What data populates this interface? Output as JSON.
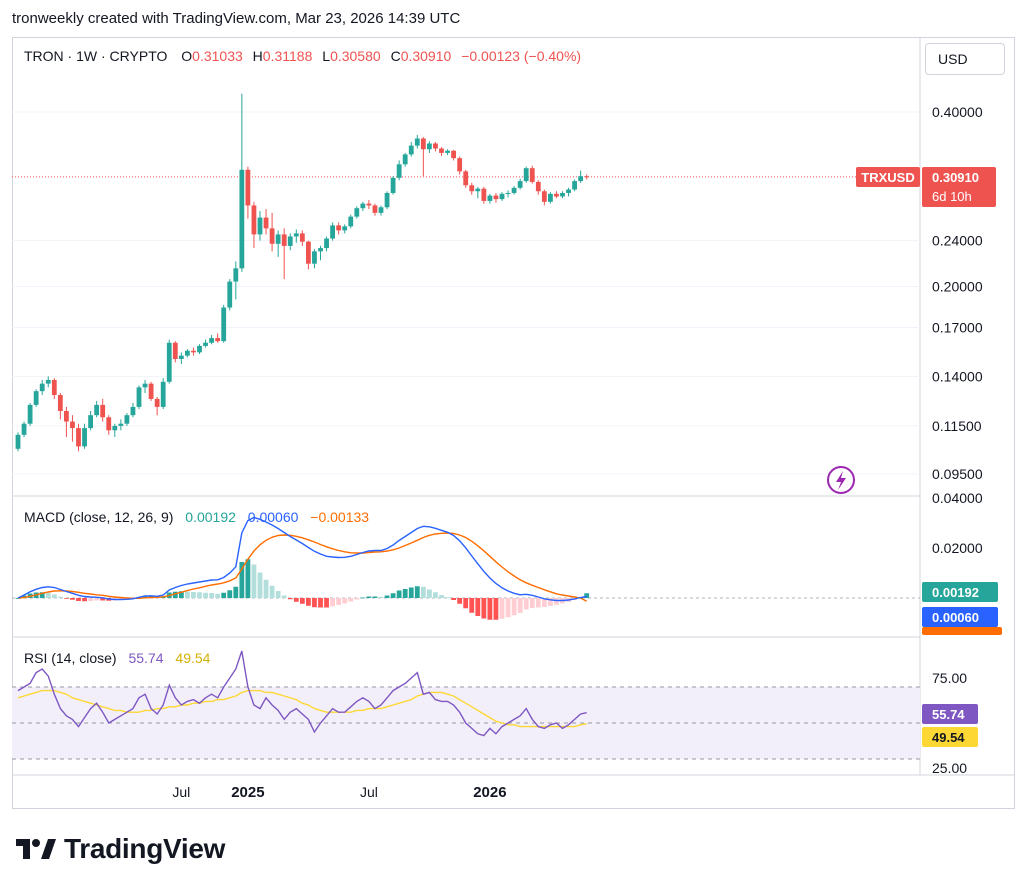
{
  "header": {
    "text": "tronweekly created with TradingView.com, Mar 23, 2026 14:39 UTC"
  },
  "currency_button": "USD",
  "brand": {
    "name": "TradingView",
    "logo": "tradingview-logo-icon"
  },
  "colors": {
    "up": "#26a69a",
    "down": "#ef5350",
    "macd_line": "#2962ff",
    "signal_line": "#ff6d00",
    "hist_up_strong": "#26a69a",
    "hist_up_weak": "#b2dfdb",
    "hist_down_strong": "#ff5252",
    "hist_down_weak": "#ffcdd2",
    "rsi_line": "#7e57c2",
    "rsi_ma": "#fdd835",
    "rsi_band": "#f3effa",
    "price_label_bg": "#ef5350"
  },
  "legend": {
    "symbol": "TRON · 1W · CRYPTO",
    "o_label": "O",
    "o_value": "0.31033",
    "h_label": "H",
    "h_value": "0.31188",
    "l_label": "L",
    "l_value": "0.30580",
    "c_label": "C",
    "c_value": "0.30910",
    "change": "−0.00123 (−0.40%)",
    "macd_title": "MACD (close, 12, 26, 9)",
    "macd_hist": "0.00192",
    "macd_value": "0.00060",
    "macd_signal": "−0.00133",
    "rsi_title": "RSI (14, close)",
    "rsi_value": "55.74",
    "rsi_ma": "49.54"
  },
  "price_labels": {
    "ticker": "TRXUSD",
    "last": "0.30910",
    "countdown": "6d 10h"
  },
  "macd_labels": {
    "hist": "0.00192",
    "macd": "0.00060",
    "signal": "−0.00133"
  },
  "rsi_labels": {
    "rsi": "55.74",
    "ma": "49.54"
  },
  "chart_data": [
    {
      "type": "candlestick",
      "title": "TRON · 1W · CRYPTO",
      "scale": "log",
      "y_ticks": [
        "0.40000",
        "0.24000",
        "0.20000",
        "0.17000",
        "0.14000",
        "0.11500",
        "0.09500"
      ],
      "x_ticks": [
        "Jul",
        "2025",
        "Jul",
        "2026"
      ],
      "last_price": 0.3091,
      "candles": [
        [
          0.105,
          0.112,
          0.104,
          0.111
        ],
        [
          0.111,
          0.117,
          0.11,
          0.116
        ],
        [
          0.116,
          0.126,
          0.115,
          0.125
        ],
        [
          0.125,
          0.133,
          0.124,
          0.132
        ],
        [
          0.132,
          0.138,
          0.13,
          0.136
        ],
        [
          0.136,
          0.14,
          0.134,
          0.138
        ],
        [
          0.138,
          0.139,
          0.128,
          0.13
        ],
        [
          0.13,
          0.131,
          0.118,
          0.122
        ],
        [
          0.122,
          0.124,
          0.11,
          0.117
        ],
        [
          0.117,
          0.12,
          0.108,
          0.114
        ],
        [
          0.114,
          0.116,
          0.104,
          0.106
        ],
        [
          0.106,
          0.116,
          0.105,
          0.114
        ],
        [
          0.114,
          0.122,
          0.113,
          0.12
        ],
        [
          0.12,
          0.127,
          0.119,
          0.125
        ],
        [
          0.125,
          0.128,
          0.117,
          0.119
        ],
        [
          0.119,
          0.12,
          0.111,
          0.113
        ],
        [
          0.113,
          0.116,
          0.11,
          0.115
        ],
        [
          0.115,
          0.118,
          0.113,
          0.116
        ],
        [
          0.116,
          0.121,
          0.115,
          0.12
        ],
        [
          0.12,
          0.126,
          0.119,
          0.124
        ],
        [
          0.124,
          0.135,
          0.123,
          0.134
        ],
        [
          0.134,
          0.138,
          0.131,
          0.136
        ],
        [
          0.136,
          0.137,
          0.127,
          0.128
        ],
        [
          0.128,
          0.129,
          0.12,
          0.124
        ],
        [
          0.124,
          0.139,
          0.123,
          0.137
        ],
        [
          0.137,
          0.162,
          0.136,
          0.16
        ],
        [
          0.16,
          0.161,
          0.148,
          0.15
        ],
        [
          0.15,
          0.154,
          0.147,
          0.152
        ],
        [
          0.152,
          0.156,
          0.151,
          0.155
        ],
        [
          0.155,
          0.157,
          0.152,
          0.154
        ],
        [
          0.154,
          0.159,
          0.153,
          0.158
        ],
        [
          0.158,
          0.162,
          0.157,
          0.16
        ],
        [
          0.16,
          0.165,
          0.159,
          0.163
        ],
        [
          0.163,
          0.166,
          0.16,
          0.161
        ],
        [
          0.161,
          0.186,
          0.16,
          0.184
        ],
        [
          0.184,
          0.206,
          0.182,
          0.204
        ],
        [
          0.204,
          0.221,
          0.19,
          0.215
        ],
        [
          0.215,
          0.43,
          0.212,
          0.318
        ],
        [
          0.318,
          0.322,
          0.262,
          0.276
        ],
        [
          0.276,
          0.28,
          0.233,
          0.246
        ],
        [
          0.246,
          0.27,
          0.24,
          0.263
        ],
        [
          0.263,
          0.272,
          0.246,
          0.252
        ],
        [
          0.252,
          0.268,
          0.23,
          0.237
        ],
        [
          0.237,
          0.25,
          0.225,
          0.246
        ],
        [
          0.246,
          0.252,
          0.206,
          0.235
        ],
        [
          0.235,
          0.247,
          0.231,
          0.244
        ],
        [
          0.244,
          0.251,
          0.238,
          0.247
        ],
        [
          0.247,
          0.25,
          0.235,
          0.239
        ],
        [
          0.239,
          0.24,
          0.214,
          0.219
        ],
        [
          0.219,
          0.232,
          0.215,
          0.23
        ],
        [
          0.23,
          0.235,
          0.222,
          0.233
        ],
        [
          0.233,
          0.244,
          0.23,
          0.242
        ],
        [
          0.242,
          0.258,
          0.24,
          0.255
        ],
        [
          0.255,
          0.258,
          0.246,
          0.25
        ],
        [
          0.25,
          0.256,
          0.247,
          0.254
        ],
        [
          0.254,
          0.266,
          0.252,
          0.264
        ],
        [
          0.264,
          0.275,
          0.262,
          0.273
        ],
        [
          0.273,
          0.28,
          0.27,
          0.278
        ],
        [
          0.278,
          0.282,
          0.272,
          0.276
        ],
        [
          0.276,
          0.278,
          0.265,
          0.268
        ],
        [
          0.268,
          0.276,
          0.265,
          0.274
        ],
        [
          0.274,
          0.292,
          0.272,
          0.29
        ],
        [
          0.29,
          0.31,
          0.288,
          0.308
        ],
        [
          0.308,
          0.33,
          0.305,
          0.325
        ],
        [
          0.325,
          0.34,
          0.322,
          0.338
        ],
        [
          0.338,
          0.355,
          0.335,
          0.35
        ],
        [
          0.35,
          0.365,
          0.346,
          0.36
        ],
        [
          0.36,
          0.362,
          0.31,
          0.345
        ],
        [
          0.345,
          0.356,
          0.34,
          0.353
        ],
        [
          0.353,
          0.355,
          0.342,
          0.346
        ],
        [
          0.346,
          0.348,
          0.336,
          0.34
        ],
        [
          0.34,
          0.345,
          0.337,
          0.343
        ],
        [
          0.343,
          0.344,
          0.33,
          0.333
        ],
        [
          0.333,
          0.335,
          0.312,
          0.316
        ],
        [
          0.316,
          0.318,
          0.296,
          0.299
        ],
        [
          0.299,
          0.302,
          0.288,
          0.292
        ],
        [
          0.292,
          0.297,
          0.284,
          0.295
        ],
        [
          0.295,
          0.297,
          0.278,
          0.281
        ],
        [
          0.281,
          0.289,
          0.278,
          0.287
        ],
        [
          0.287,
          0.29,
          0.279,
          0.283
        ],
        [
          0.283,
          0.291,
          0.281,
          0.289
        ],
        [
          0.289,
          0.293,
          0.285,
          0.29
        ],
        [
          0.29,
          0.298,
          0.288,
          0.296
        ],
        [
          0.296,
          0.307,
          0.294,
          0.304
        ],
        [
          0.304,
          0.322,
          0.302,
          0.32
        ],
        [
          0.32,
          0.323,
          0.301,
          0.303
        ],
        [
          0.303,
          0.305,
          0.288,
          0.292
        ],
        [
          0.292,
          0.294,
          0.276,
          0.28
        ],
        [
          0.28,
          0.291,
          0.278,
          0.289
        ],
        [
          0.289,
          0.292,
          0.284,
          0.286
        ],
        [
          0.286,
          0.292,
          0.284,
          0.29
        ],
        [
          0.29,
          0.296,
          0.286,
          0.294
        ],
        [
          0.294,
          0.306,
          0.292,
          0.304
        ],
        [
          0.304,
          0.317,
          0.302,
          0.31
        ],
        [
          0.31,
          0.312,
          0.306,
          0.309
        ]
      ]
    },
    {
      "type": "line",
      "title": "MACD (close, 12, 26, 9)",
      "y_ticks": [
        "0.04000",
        "0.02000"
      ],
      "macd": [
        0,
        0.0012,
        0.0025,
        0.0035,
        0.0042,
        0.0045,
        0.0042,
        0.0034,
        0.0026,
        0.0019,
        0.0011,
        0.0006,
        0.0004,
        0.0003,
        0.0001,
        -0.0004,
        -0.0006,
        -0.0006,
        -0.0005,
        -0.0003,
        0.0003,
        0.0008,
        0.0009,
        0.0007,
        0.0012,
        0.0032,
        0.0042,
        0.005,
        0.0056,
        0.006,
        0.0064,
        0.0068,
        0.0072,
        0.0073,
        0.0082,
        0.01,
        0.0125,
        0.026,
        0.031,
        0.0322,
        0.0315,
        0.0304,
        0.0292,
        0.0278,
        0.0262,
        0.0246,
        0.0232,
        0.0218,
        0.0202,
        0.0187,
        0.0176,
        0.0167,
        0.0164,
        0.0162,
        0.0163,
        0.0167,
        0.0174,
        0.0182,
        0.0188,
        0.019,
        0.019,
        0.0198,
        0.0212,
        0.023,
        0.0246,
        0.0262,
        0.0278,
        0.0287,
        0.0285,
        0.0279,
        0.0271,
        0.0263,
        0.025,
        0.0229,
        0.0201,
        0.0168,
        0.0137,
        0.0107,
        0.008,
        0.0058,
        0.0041,
        0.0028,
        0.0019,
        0.0013,
        0.0015,
        0.0011,
        0.0004,
        -0.0003,
        -0.0007,
        -0.001,
        -0.001,
        -0.0008,
        -0.0004,
        0.0002,
        0.0006
      ],
      "signal": [
        0,
        0.0002,
        0.0007,
        0.0013,
        0.0019,
        0.0024,
        0.0028,
        0.0029,
        0.0028,
        0.0026,
        0.0023,
        0.0019,
        0.0016,
        0.0013,
        0.0011,
        0.0007,
        0.0004,
        0.0002,
        0.0,
        -0.0001,
        -0.0001,
        0.0001,
        0.0002,
        0.0003,
        0.0005,
        0.001,
        0.0017,
        0.0023,
        0.003,
        0.0036,
        0.0041,
        0.0047,
        0.0052,
        0.0056,
        0.0061,
        0.0069,
        0.008,
        0.0116,
        0.0155,
        0.0188,
        0.0213,
        0.0231,
        0.0243,
        0.025,
        0.0252,
        0.0251,
        0.0247,
        0.0241,
        0.0233,
        0.0224,
        0.0214,
        0.0205,
        0.0197,
        0.019,
        0.0185,
        0.0181,
        0.018,
        0.018,
        0.0182,
        0.0184,
        0.0185,
        0.0188,
        0.0193,
        0.02,
        0.021,
        0.022,
        0.0231,
        0.0242,
        0.0251,
        0.0256,
        0.0259,
        0.026,
        0.0258,
        0.0252,
        0.0242,
        0.0227,
        0.0209,
        0.0189,
        0.0167,
        0.0145,
        0.0124,
        0.0105,
        0.0088,
        0.0073,
        0.0061,
        0.0051,
        0.0042,
        0.0033,
        0.0025,
        0.0017,
        0.0012,
        0.0008,
        0.0004,
        0.0,
        -0.0013
      ],
      "histogram": [
        0,
        0.001,
        0.0018,
        0.0022,
        0.0023,
        0.0021,
        0.0014,
        0.0005,
        -0.0002,
        -0.0007,
        -0.0012,
        -0.0013,
        -0.0012,
        -0.001,
        -0.001,
        -0.0011,
        -0.001,
        -0.0008,
        -0.0005,
        -0.0002,
        0.0004,
        0.0007,
        0.0007,
        0.0004,
        0.0007,
        0.0022,
        0.0025,
        0.0027,
        0.0026,
        0.0024,
        0.0023,
        0.0021,
        0.002,
        0.0017,
        0.0021,
        0.0031,
        0.0045,
        0.0144,
        0.0155,
        0.0134,
        0.0102,
        0.0073,
        0.0049,
        0.0028,
        0.001,
        -0.0005,
        -0.0015,
        -0.0023,
        -0.0031,
        -0.0037,
        -0.0038,
        -0.0038,
        -0.0033,
        -0.0028,
        -0.0022,
        -0.0014,
        -0.0006,
        0.0002,
        0.0006,
        0.0006,
        0.0005,
        0.001,
        0.0019,
        0.003,
        0.0036,
        0.0042,
        0.0047,
        0.0045,
        0.0034,
        0.0023,
        0.0012,
        0.0003,
        -0.0008,
        -0.0023,
        -0.0041,
        -0.0059,
        -0.0072,
        -0.0082,
        -0.0087,
        -0.0087,
        -0.0083,
        -0.0077,
        -0.0069,
        -0.006,
        -0.0046,
        -0.004,
        -0.0038,
        -0.0036,
        -0.0032,
        -0.0027,
        -0.0022,
        -0.0016,
        -0.0008,
        0.0002,
        0.0019
      ]
    },
    {
      "type": "line",
      "title": "RSI (14, close)",
      "y_ticks": [
        "75.00",
        "25.00"
      ],
      "levels": [
        70,
        50,
        30
      ],
      "rsi": [
        68,
        70,
        72,
        78,
        80,
        76,
        66,
        58,
        54,
        52,
        48,
        53,
        58,
        61,
        56,
        50,
        52,
        54,
        56,
        58,
        64,
        66,
        58,
        55,
        60,
        71,
        64,
        60,
        62,
        63,
        61,
        64,
        66,
        64,
        70,
        75,
        80,
        90,
        70,
        60,
        58,
        64,
        60,
        57,
        52,
        56,
        58,
        55,
        52,
        45,
        50,
        54,
        58,
        56,
        56,
        59,
        62,
        64,
        62,
        58,
        60,
        64,
        68,
        70,
        72,
        75,
        78,
        66,
        67,
        63,
        62,
        62,
        60,
        56,
        50,
        47,
        44,
        43,
        47,
        44,
        48,
        50,
        52,
        54,
        58,
        52,
        48,
        47,
        49,
        50,
        47,
        49,
        52,
        55,
        55.74
      ],
      "rsi_ma": [
        64,
        65,
        66,
        67,
        68,
        68,
        68,
        67,
        66,
        64,
        63,
        62,
        61,
        60,
        59,
        58,
        57,
        57,
        56,
        56,
        56,
        57,
        57,
        58,
        58,
        59,
        59,
        60,
        60,
        61,
        61,
        62,
        62,
        63,
        63,
        64,
        65,
        67,
        68,
        68,
        68,
        67,
        67,
        66,
        65,
        64,
        63,
        61,
        60,
        58,
        57,
        56,
        56,
        56,
        56,
        56,
        57,
        57,
        58,
        58,
        58,
        59,
        60,
        61,
        62,
        63,
        65,
        66,
        67,
        67,
        67,
        66,
        65,
        63,
        61,
        59,
        57,
        55,
        53,
        51,
        50,
        49,
        49,
        48,
        48,
        48,
        48,
        48,
        48,
        48,
        48,
        48,
        48,
        49,
        49.54
      ]
    }
  ]
}
